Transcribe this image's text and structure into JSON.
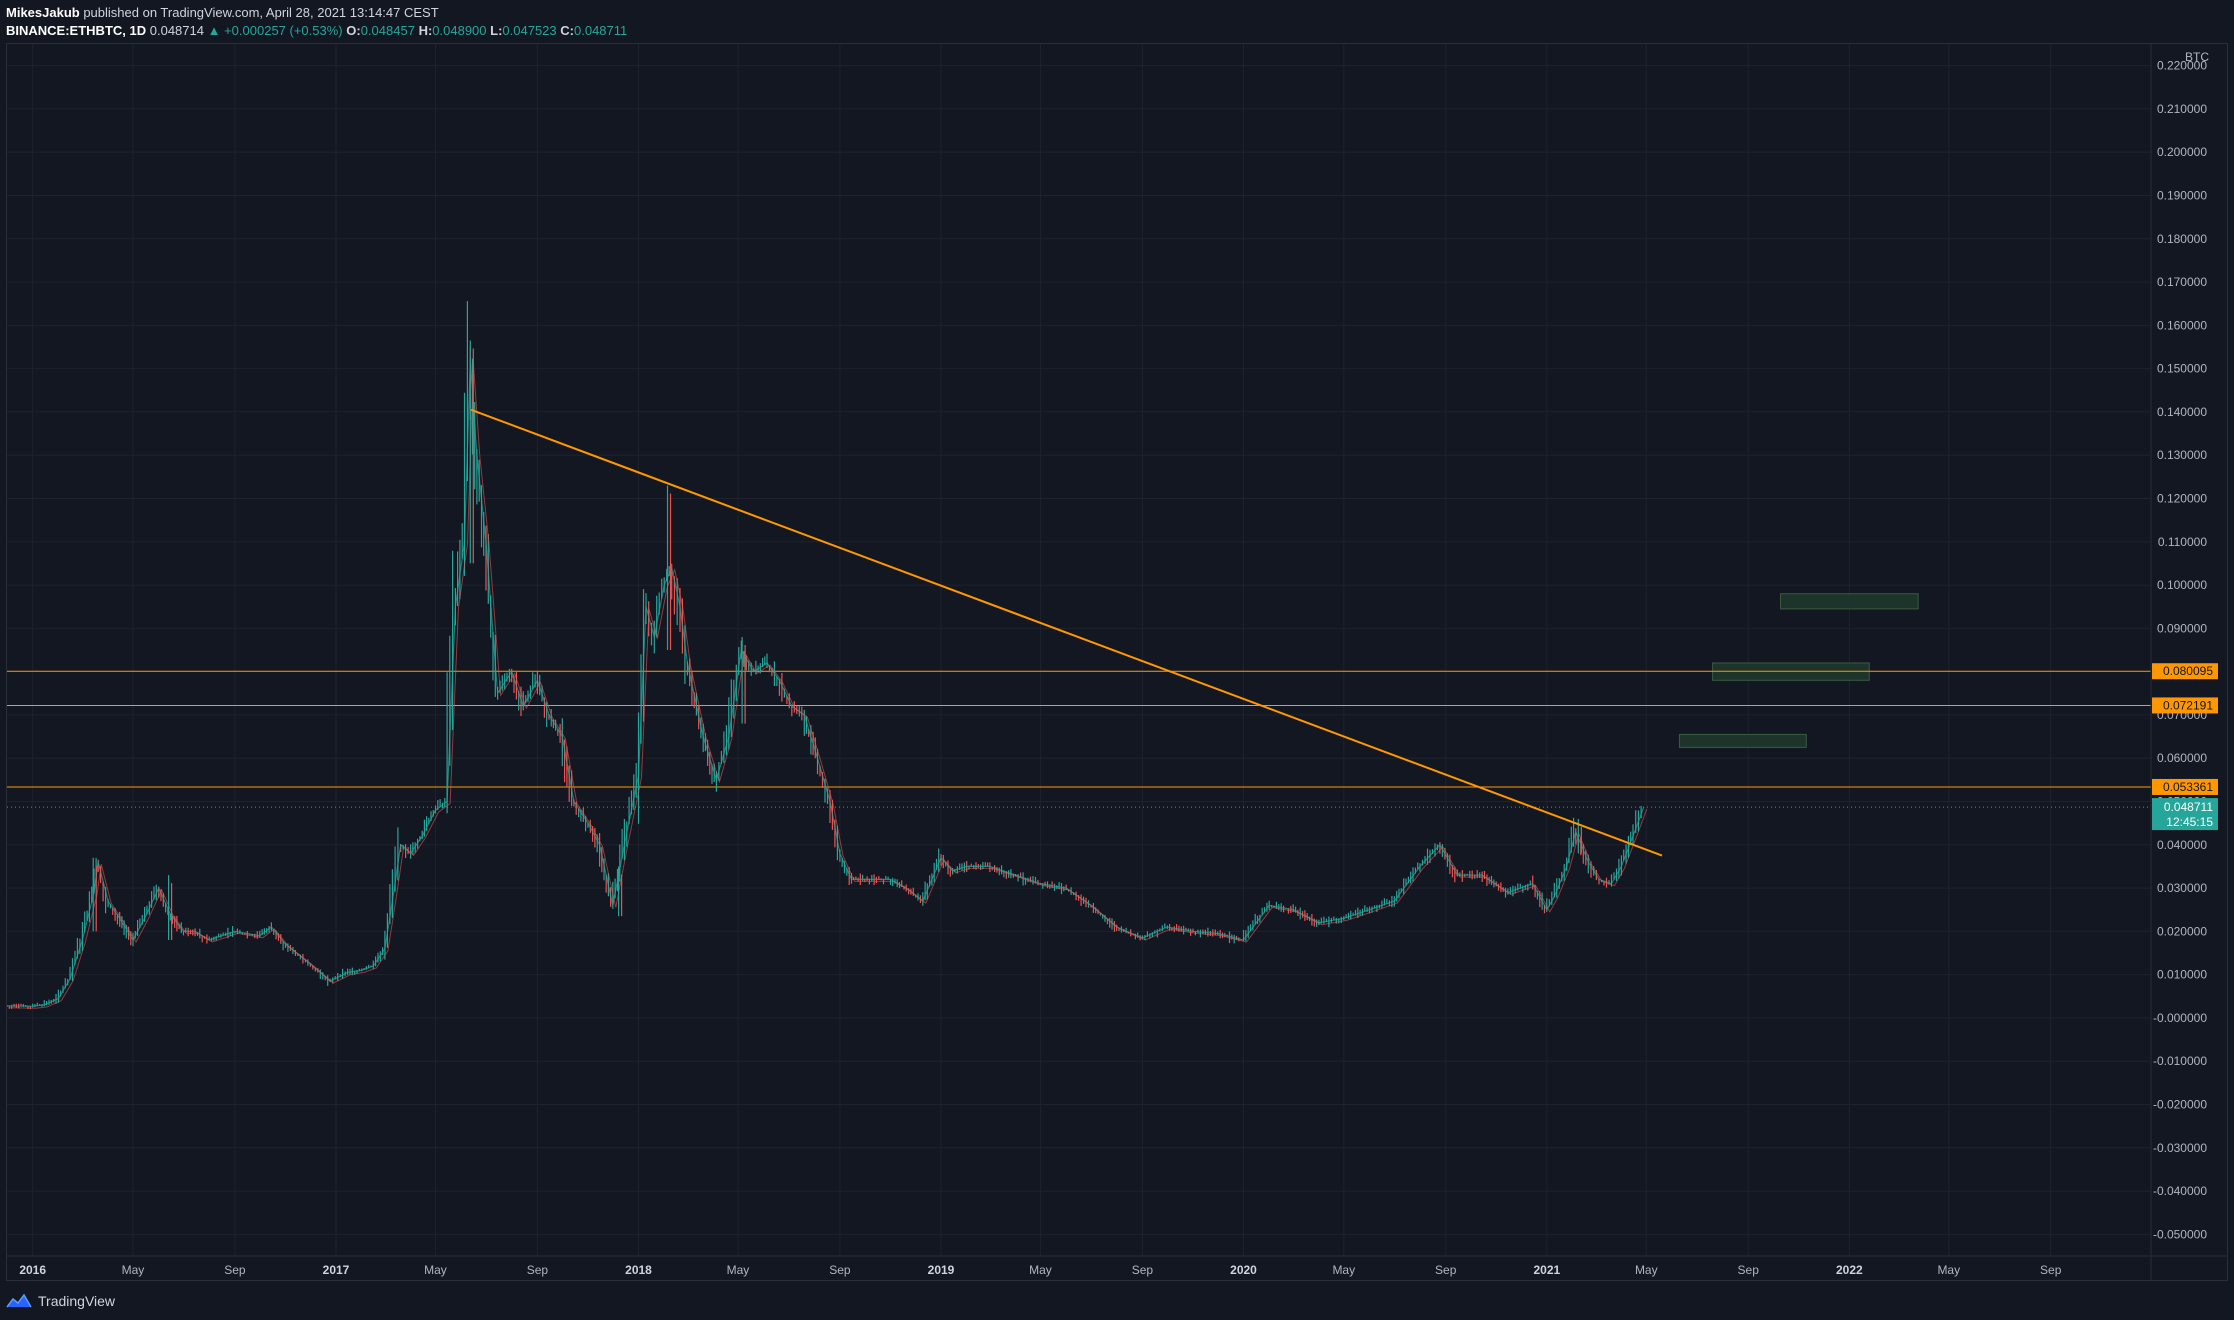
{
  "header": {
    "author": "MikesJakub",
    "published_text": "published on TradingView.com, April 28, 2021 13:14:47 CEST",
    "symbol": "BINANCE:ETHBTC, 1D",
    "last": "0.048714",
    "change": "▲ +0.000257 (+0.53%)",
    "o_label": "O:",
    "o": "0.048457",
    "h_label": "H:",
    "h": "0.048900",
    "l_label": "L:",
    "l": "0.047523",
    "c_label": "C:",
    "c": "0.048711"
  },
  "footer": {
    "brand": "TradingView"
  },
  "colors": {
    "background": "#131722",
    "grid": "#1e222d",
    "up": "#26a69a",
    "down": "#ef5350",
    "trendline": "#ff9800",
    "price_line": "#26a69a",
    "zone": "#1e3a2a"
  },
  "chart_data": {
    "type": "line",
    "symbol": "ETHBTC",
    "interval": "1D",
    "y_unit": "BTC",
    "ylim": [
      -0.055,
      0.225
    ],
    "xlim": [
      "2015-12-01",
      "2022-12-31"
    ],
    "y_ticks": [
      "0.220000",
      "0.210000",
      "0.200000",
      "0.190000",
      "0.180000",
      "0.170000",
      "0.160000",
      "0.150000",
      "0.140000",
      "0.130000",
      "0.120000",
      "0.110000",
      "0.100000",
      "0.090000",
      "0.080000",
      "0.070000",
      "0.060000",
      "0.050000",
      "0.040000",
      "0.030000",
      "0.020000",
      "0.010000",
      "-0.000000",
      "-0.010000",
      "-0.020000",
      "-0.030000",
      "-0.040000",
      "-0.050000"
    ],
    "x_ticks": [
      {
        "label": "2016",
        "date": "2016-01-01",
        "year": true
      },
      {
        "label": "May",
        "date": "2016-05-01",
        "year": false
      },
      {
        "label": "Sep",
        "date": "2016-09-01",
        "year": false
      },
      {
        "label": "2017",
        "date": "2017-01-01",
        "year": true
      },
      {
        "label": "May",
        "date": "2017-05-01",
        "year": false
      },
      {
        "label": "Sep",
        "date": "2017-09-01",
        "year": false
      },
      {
        "label": "2018",
        "date": "2018-01-01",
        "year": true
      },
      {
        "label": "May",
        "date": "2018-05-01",
        "year": false
      },
      {
        "label": "Sep",
        "date": "2018-09-01",
        "year": false
      },
      {
        "label": "2019",
        "date": "2019-01-01",
        "year": true
      },
      {
        "label": "May",
        "date": "2019-05-01",
        "year": false
      },
      {
        "label": "Sep",
        "date": "2019-09-01",
        "year": false
      },
      {
        "label": "2020",
        "date": "2020-01-01",
        "year": true
      },
      {
        "label": "May",
        "date": "2020-05-01",
        "year": false
      },
      {
        "label": "Sep",
        "date": "2020-09-01",
        "year": false
      },
      {
        "label": "2021",
        "date": "2021-01-01",
        "year": true
      },
      {
        "label": "May",
        "date": "2021-05-01",
        "year": false
      },
      {
        "label": "Sep",
        "date": "2021-09-01",
        "year": false
      },
      {
        "label": "2022",
        "date": "2022-01-01",
        "year": true
      },
      {
        "label": "May",
        "date": "2022-05-01",
        "year": false
      },
      {
        "label": "Sep",
        "date": "2022-09-01",
        "year": false
      }
    ],
    "price_path": [
      [
        "2015-12-01",
        0.0028
      ],
      [
        "2016-01-01",
        0.0027
      ],
      [
        "2016-01-15",
        0.003
      ],
      [
        "2016-02-01",
        0.0045
      ],
      [
        "2016-02-15",
        0.009
      ],
      [
        "2016-03-01",
        0.018
      ],
      [
        "2016-03-15",
        0.029
      ],
      [
        "2016-03-20",
        0.036
      ],
      [
        "2016-04-01",
        0.027
      ],
      [
        "2016-04-15",
        0.023
      ],
      [
        "2016-05-01",
        0.018
      ],
      [
        "2016-05-15",
        0.023
      ],
      [
        "2016-06-01",
        0.03
      ],
      [
        "2016-06-15",
        0.024
      ],
      [
        "2016-07-01",
        0.02
      ],
      [
        "2016-07-15",
        0.02
      ],
      [
        "2016-08-01",
        0.018
      ],
      [
        "2016-09-01",
        0.02
      ],
      [
        "2016-10-01",
        0.019
      ],
      [
        "2016-10-15",
        0.021
      ],
      [
        "2016-11-01",
        0.017
      ],
      [
        "2016-12-01",
        0.0125
      ],
      [
        "2016-12-25",
        0.0085
      ],
      [
        "2017-01-15",
        0.0105
      ],
      [
        "2017-02-01",
        0.011
      ],
      [
        "2017-02-15",
        0.012
      ],
      [
        "2017-03-01",
        0.016
      ],
      [
        "2017-03-10",
        0.027
      ],
      [
        "2017-03-20",
        0.04
      ],
      [
        "2017-04-01",
        0.038
      ],
      [
        "2017-04-15",
        0.042
      ],
      [
        "2017-05-01",
        0.048
      ],
      [
        "2017-05-15",
        0.05
      ],
      [
        "2017-05-25",
        0.095
      ],
      [
        "2017-06-05",
        0.11
      ],
      [
        "2017-06-12",
        0.152
      ],
      [
        "2017-06-20",
        0.13
      ],
      [
        "2017-07-01",
        0.11
      ],
      [
        "2017-07-15",
        0.075
      ],
      [
        "2017-08-01",
        0.08
      ],
      [
        "2017-08-15",
        0.072
      ],
      [
        "2017-09-01",
        0.078
      ],
      [
        "2017-09-15",
        0.07
      ],
      [
        "2017-10-01",
        0.065
      ],
      [
        "2017-10-15",
        0.05
      ],
      [
        "2017-11-01",
        0.045
      ],
      [
        "2017-11-15",
        0.04
      ],
      [
        "2017-12-01",
        0.026
      ],
      [
        "2017-12-15",
        0.04
      ],
      [
        "2018-01-01",
        0.056
      ],
      [
        "2018-01-10",
        0.095
      ],
      [
        "2018-01-20",
        0.088
      ],
      [
        "2018-02-01",
        0.1
      ],
      [
        "2018-02-10",
        0.104
      ],
      [
        "2018-02-20",
        0.095
      ],
      [
        "2018-03-01",
        0.082
      ],
      [
        "2018-03-20",
        0.065
      ],
      [
        "2018-04-05",
        0.055
      ],
      [
        "2018-04-20",
        0.065
      ],
      [
        "2018-05-05",
        0.085
      ],
      [
        "2018-05-20",
        0.08
      ],
      [
        "2018-06-05",
        0.082
      ],
      [
        "2018-06-20",
        0.078
      ],
      [
        "2018-07-05",
        0.072
      ],
      [
        "2018-07-20",
        0.07
      ],
      [
        "2018-08-05",
        0.06
      ],
      [
        "2018-08-20",
        0.05
      ],
      [
        "2018-09-01",
        0.038
      ],
      [
        "2018-09-15",
        0.032
      ],
      [
        "2018-10-01",
        0.032
      ],
      [
        "2018-11-01",
        0.032
      ],
      [
        "2018-11-20",
        0.03
      ],
      [
        "2018-12-10",
        0.027
      ],
      [
        "2019-01-01",
        0.037
      ],
      [
        "2019-01-15",
        0.034
      ],
      [
        "2019-02-01",
        0.035
      ],
      [
        "2019-03-01",
        0.035
      ],
      [
        "2019-04-01",
        0.033
      ],
      [
        "2019-05-01",
        0.031
      ],
      [
        "2019-06-01",
        0.03
      ],
      [
        "2019-07-01",
        0.026
      ],
      [
        "2019-08-01",
        0.021
      ],
      [
        "2019-09-01",
        0.0185
      ],
      [
        "2019-10-01",
        0.021
      ],
      [
        "2019-11-01",
        0.02
      ],
      [
        "2019-12-01",
        0.0195
      ],
      [
        "2020-01-01",
        0.018
      ],
      [
        "2020-02-01",
        0.026
      ],
      [
        "2020-03-01",
        0.025
      ],
      [
        "2020-04-01",
        0.022
      ],
      [
        "2020-05-01",
        0.023
      ],
      [
        "2020-06-01",
        0.025
      ],
      [
        "2020-07-01",
        0.027
      ],
      [
        "2020-08-01",
        0.035
      ],
      [
        "2020-08-25",
        0.04
      ],
      [
        "2020-09-15",
        0.033
      ],
      [
        "2020-10-15",
        0.033
      ],
      [
        "2020-11-15",
        0.029
      ],
      [
        "2020-12-15",
        0.031
      ],
      [
        "2021-01-01",
        0.025
      ],
      [
        "2021-01-10",
        0.028
      ],
      [
        "2021-01-25",
        0.035
      ],
      [
        "2021-02-05",
        0.043
      ],
      [
        "2021-02-20",
        0.036
      ],
      [
        "2021-03-05",
        0.032
      ],
      [
        "2021-03-20",
        0.031
      ],
      [
        "2021-04-01",
        0.035
      ],
      [
        "2021-04-15",
        0.042
      ],
      [
        "2021-04-28",
        0.048711
      ]
    ],
    "spikes": [
      {
        "date": "2016-03-14",
        "high": 0.037,
        "low": 0.02
      },
      {
        "date": "2016-06-13",
        "high": 0.033,
        "low": 0.018
      },
      {
        "date": "2017-06-12",
        "high": 0.1565,
        "low": 0.105
      },
      {
        "date": "2017-12-08",
        "high": 0.035,
        "low": 0.0235
      },
      {
        "date": "2018-02-05",
        "high": 0.123,
        "low": 0.085
      },
      {
        "date": "2018-05-06",
        "high": 0.088,
        "low": 0.068
      },
      {
        "date": "2021-02-08",
        "high": 0.046,
        "low": 0.038
      }
    ],
    "trendline": {
      "start": [
        "2017-06-13",
        0.1405
      ],
      "end": [
        "2021-05-20",
        0.0375
      ]
    },
    "horizontal_levels": [
      {
        "value": 0.080095,
        "label": "0.080095"
      },
      {
        "value": 0.072191,
        "label": "0.072191"
      },
      {
        "value": 0.053361,
        "label": "0.053361"
      }
    ],
    "last_price": {
      "value": 0.048711,
      "label": "0.048711",
      "countdown": "12:45:15"
    },
    "target_zones": [
      {
        "start": "2021-06-10",
        "end": "2021-11-10",
        "low": 0.0625,
        "high": 0.0655
      },
      {
        "start": "2021-07-20",
        "end": "2022-01-25",
        "low": 0.078,
        "high": 0.082
      },
      {
        "start": "2021-10-10",
        "end": "2022-03-25",
        "low": 0.0945,
        "high": 0.098
      }
    ]
  }
}
